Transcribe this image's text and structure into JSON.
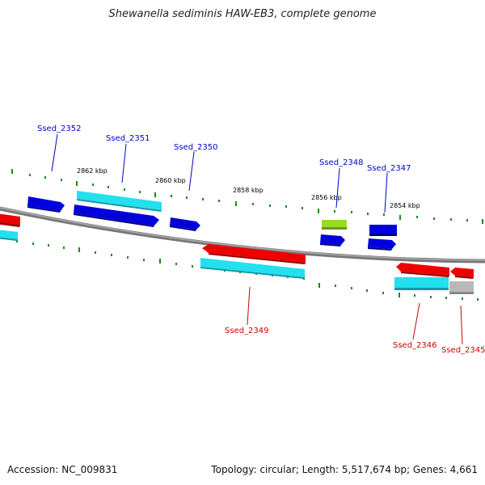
{
  "title": "Shewanella sediminis HAW-EB3, complete genome",
  "accession": "Accession: NC_009831",
  "summary": "Topology: circular; Length: 5,517,674 bp; Genes: 4,661",
  "scale_labels": [
    "2862 kbp",
    "2860 kbp",
    "2858 kbp",
    "2856 kbp",
    "2854 kbp"
  ],
  "genes_upper": [
    "Ssed_2352",
    "Ssed_2351",
    "Ssed_2350",
    "Ssed_2348",
    "Ssed_2347"
  ],
  "genes_lower": [
    "Ssed_2349",
    "Ssed_2346",
    "Ssed_2345"
  ],
  "colors": {
    "forward_cds": "#0000dd",
    "reverse_cds": "#ee0000",
    "rna_light": "#22e0ee",
    "gene_grey": "#b8b8b8",
    "green_feature": "#99dd22",
    "tick": "#1a8a1a",
    "backbone": "#888888",
    "upper_label": "#0000cc",
    "lower_label": "#cc0000"
  }
}
